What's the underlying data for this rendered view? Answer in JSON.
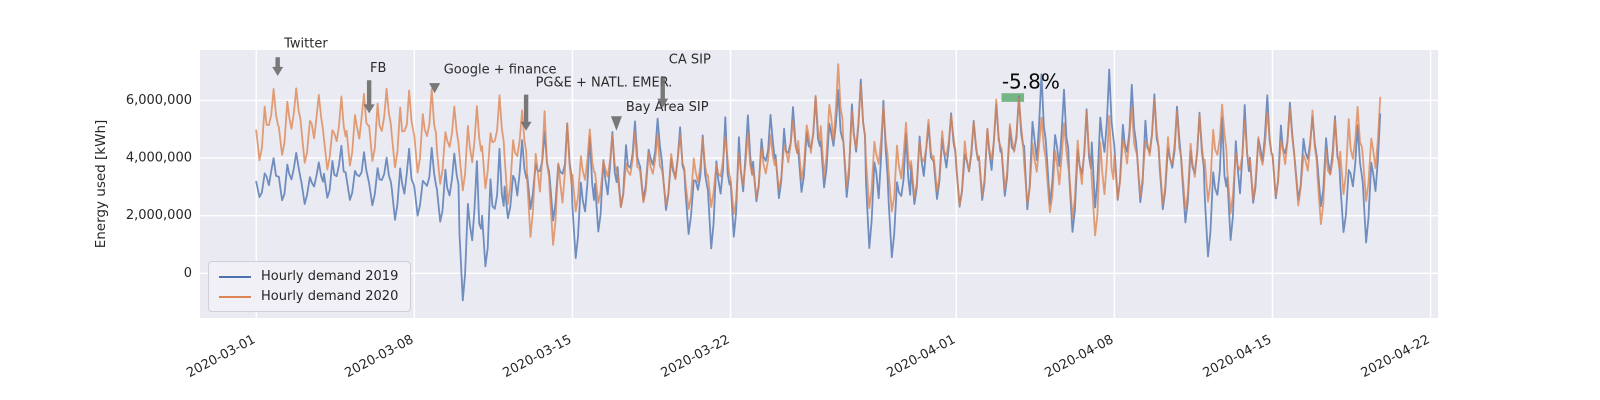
{
  "figure": {
    "background": "#ffffff"
  },
  "axes": {
    "background": "#eaeaf2",
    "grid_color": "#ffffff"
  },
  "legend": {
    "position": "lower left",
    "items": [
      {
        "label": "Hourly demand 2019",
        "color": "#4c72b0"
      },
      {
        "label": "Hourly demand 2020",
        "color": "#dd8452"
      }
    ]
  },
  "chart_data": {
    "type": "line",
    "title": "",
    "xlabel": "",
    "ylabel": "Energy used [kWh]",
    "unit": "kWh",
    "grid": true,
    "x_axis_kind": "date",
    "x_origin_date": "2020-03-01",
    "xlim_days_from_origin": [
      -2.49,
      52.33
    ],
    "ylim": [
      -1550000,
      7750000
    ],
    "x_ticks": [
      {
        "label": "2020-03-01",
        "day": 0
      },
      {
        "label": "2020-03-08",
        "day": 7
      },
      {
        "label": "2020-03-15",
        "day": 14
      },
      {
        "label": "2020-03-22",
        "day": 21
      },
      {
        "label": "2020-04-01",
        "day": 31
      },
      {
        "label": "2020-04-08",
        "day": 38
      },
      {
        "label": "2020-04-15",
        "day": 45
      },
      {
        "label": "2020-04-22",
        "day": 52
      }
    ],
    "y_ticks": [
      {
        "label": "0",
        "value": 0
      },
      {
        "label": "2,000,000",
        "value": 2000000
      },
      {
        "label": "4,000,000",
        "value": 4000000
      },
      {
        "label": "6,000,000",
        "value": 6000000
      }
    ],
    "resolution": "hourly (approximated by per-day peak/trough envelope read off the plot)",
    "values_in": "million kWh",
    "value_scale": 1000000,
    "data_start_day": 0,
    "data_end_day": 49.8,
    "daily_profile": {
      "hours": [
        0,
        3.5,
        6,
        9,
        11,
        13.5,
        16,
        18.5,
        21,
        23
      ],
      "weights": [
        0.45,
        0.0,
        0.18,
        0.68,
        0.52,
        0.4,
        0.62,
        1.0,
        0.62,
        0.5
      ]
    },
    "series": [
      {
        "name": "Hourly demand 2019",
        "color": "#4c72b0",
        "alpha": 0.78,
        "daily_peaks": [
          4.1,
          4.2,
          4.0,
          4.3,
          4.2,
          4.1,
          4.4,
          4.3,
          4.2,
          4.0,
          4.3,
          4.5,
          5.0,
          5.1,
          4.6,
          4.9,
          5.2,
          5.4,
          5.0,
          4.7,
          5.3,
          5.6,
          5.5,
          5.8,
          6.0,
          6.4,
          6.8,
          5.9,
          4.9,
          5.3,
          5.6,
          5.4,
          5.8,
          6.0,
          7.0,
          6.3,
          5.8,
          7.1,
          6.4,
          6.2,
          5.7,
          5.5,
          5.3,
          5.8,
          6.1,
          5.9,
          5.6,
          5.4,
          5.2,
          5.5
        ],
        "daily_troughs": [
          2.6,
          2.5,
          2.4,
          2.6,
          2.5,
          2.4,
          1.9,
          2.0,
          1.8,
          -0.9,
          0.2,
          1.9,
          2.2,
          1.8,
          0.5,
          1.5,
          2.3,
          2.5,
          2.2,
          1.4,
          0.9,
          1.3,
          2.5,
          2.6,
          2.8,
          3.0,
          2.7,
          0.9,
          0.6,
          2.4,
          2.6,
          2.3,
          2.5,
          2.7,
          2.2,
          2.4,
          1.4,
          2.3,
          2.6,
          2.5,
          2.2,
          1.8,
          0.6,
          1.2,
          2.4,
          2.6,
          2.5,
          2.3,
          1.4,
          1.1
        ]
      },
      {
        "name": "Hourly demand 2020",
        "color": "#dd8452",
        "alpha": 0.78,
        "daily_peaks": [
          6.4,
          6.5,
          6.3,
          6.0,
          6.35,
          6.45,
          6.2,
          6.3,
          5.9,
          5.7,
          6.1,
          5.8,
          5.6,
          5.2,
          5.0,
          4.9,
          4.8,
          4.7,
          4.8,
          4.6,
          4.7,
          4.9,
          4.8,
          5.4,
          6.1,
          7.3,
          6.6,
          5.9,
          5.2,
          5.4,
          5.6,
          5.3,
          5.9,
          6.2,
          5.5,
          5.3,
          5.6,
          5.4,
          5.9,
          6.0,
          5.6,
          5.4,
          5.9,
          5.3,
          5.6,
          5.8,
          5.5,
          5.4,
          5.9,
          6.1
        ],
        "daily_troughs": [
          3.9,
          4.1,
          3.8,
          3.6,
          3.7,
          3.9,
          3.7,
          3.5,
          3.1,
          2.9,
          3.0,
          2.4,
          1.3,
          1.0,
          2.2,
          2.4,
          2.3,
          2.5,
          2.4,
          2.2,
          2.3,
          2.1,
          2.6,
          2.9,
          3.2,
          3.4,
          3.0,
          2.3,
          2.1,
          2.6,
          2.8,
          2.4,
          2.7,
          2.9,
          2.4,
          2.1,
          1.9,
          1.3,
          2.6,
          2.7,
          2.4,
          2.2,
          2.5,
          2.1,
          2.6,
          2.7,
          2.4,
          1.7,
          2.8,
          2.5
        ]
      }
    ],
    "annotations": [
      {
        "id": "twitter",
        "text": "Twitter",
        "marker": "arrow",
        "arrow_day": 0.95,
        "tail_value": 7500000,
        "tip_value": 6850000,
        "text_day": 2.2,
        "text_value": 7950000
      },
      {
        "id": "fb",
        "text": "FB",
        "marker": "arrow",
        "arrow_day": 5.0,
        "tail_value": 6700000,
        "tip_value": 5550000,
        "text_day": 5.4,
        "text_value": 7100000
      },
      {
        "id": "google-finance",
        "text": "Google + finance",
        "marker": "triangle",
        "arrow_day": 7.9,
        "tail_value": 6600000,
        "tip_value": 6250000,
        "text_day": 10.8,
        "text_value": 7050000
      },
      {
        "id": "pge-natl-emer",
        "text": "PG&E + NATL. EMER.",
        "marker": "arrow",
        "arrow_day": 11.95,
        "tail_value": 6200000,
        "tip_value": 4950000,
        "text_day": 15.4,
        "text_value": 6600000
      },
      {
        "id": "bay-area-sip",
        "text": "Bay Area SIP",
        "marker": "triangle",
        "arrow_day": 15.95,
        "tail_value": 5450000,
        "tip_value": 4950000,
        "text_day": 18.2,
        "text_value": 5750000
      },
      {
        "id": "ca-sip",
        "text": "CA SIP",
        "marker": "arrow",
        "arrow_day": 18.0,
        "tail_value": 6800000,
        "tip_value": 5750000,
        "text_day": 19.2,
        "text_value": 7400000
      }
    ],
    "annotation_color": "#2b2b2b",
    "arrow_color": "#6b6b6b",
    "highlight": {
      "text": "-5.8%",
      "text_color": "#0a0a0a",
      "rect_color": "#55a868",
      "rect_day_start": 33.0,
      "rect_day_end": 34.0,
      "rect_value_low": 5950000,
      "rect_value_high": 6250000,
      "text_day": 34.3,
      "text_value": 6650000
    }
  }
}
